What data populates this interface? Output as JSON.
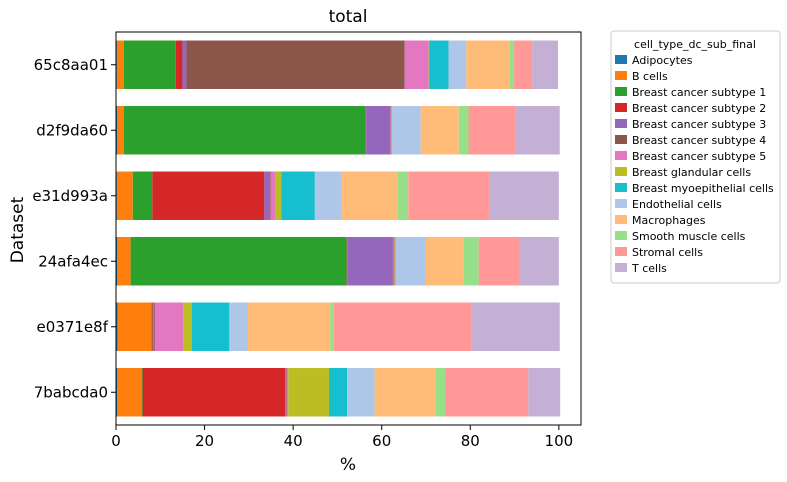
{
  "chart_data": {
    "type": "bar",
    "orientation": "horizontal",
    "stacked": true,
    "title": "total",
    "xlabel": "%",
    "ylabel": "Dataset",
    "xlim": [
      0,
      105
    ],
    "xticks": [
      0,
      20,
      40,
      60,
      80,
      100
    ],
    "grid": false,
    "legend_title": "cell_type_dc_sub_final",
    "legend_position": "outside-right",
    "categories": [
      "7babcda0",
      "e0371e8f",
      "24afa4ec",
      "e31d993a",
      "d2f9da60",
      "65c8aa01"
    ],
    "series": [
      {
        "name": "Adipocytes",
        "color": "#1f77b4",
        "values": [
          0.3,
          0.4,
          0.3,
          0.2,
          0.3,
          0.2
        ]
      },
      {
        "name": "B cells",
        "color": "#ff7f0e",
        "values": [
          5.5,
          7.6,
          3.0,
          3.6,
          1.5,
          1.6
        ]
      },
      {
        "name": "Breast cancer subtype 1",
        "color": "#2ca02c",
        "values": [
          0.2,
          0.2,
          48.8,
          4.4,
          54.6,
          11.7
        ]
      },
      {
        "name": "Breast cancer subtype 2",
        "color": "#d62728",
        "values": [
          32.2,
          0.2,
          0.1,
          25.3,
          0.1,
          1.5
        ]
      },
      {
        "name": "Breast cancer subtype 3",
        "color": "#9467bd",
        "values": [
          0.2,
          0.3,
          10.3,
          1.2,
          5.4,
          0.9
        ]
      },
      {
        "name": "Breast cancer subtype 4",
        "color": "#8c564b",
        "values": [
          0.1,
          0.1,
          0.2,
          0.2,
          0.1,
          49.3
        ]
      },
      {
        "name": "Breast cancer subtype 5",
        "color": "#e377c2",
        "values": [
          0.4,
          6.4,
          0.2,
          1.0,
          0.1,
          5.4
        ]
      },
      {
        "name": "Breast glandular cells",
        "color": "#bcbd22",
        "values": [
          9.2,
          1.9,
          0.1,
          1.4,
          0.1,
          0.1
        ]
      },
      {
        "name": "Breast myoepithelial cells",
        "color": "#17becf",
        "values": [
          4.1,
          8.5,
          0.1,
          7.6,
          0.1,
          4.4
        ]
      },
      {
        "name": "Endothelial cells",
        "color": "#aec7e8",
        "values": [
          6.2,
          4.2,
          6.9,
          6.0,
          6.5,
          4.0
        ]
      },
      {
        "name": "Macrophages",
        "color": "#ffbb78",
        "values": [
          13.7,
          18.6,
          8.5,
          12.6,
          8.6,
          9.7
        ]
      },
      {
        "name": "Smooth muscle cells",
        "color": "#98df8a",
        "values": [
          2.2,
          0.8,
          3.4,
          2.5,
          2.2,
          1.1
        ]
      },
      {
        "name": "Stromal cells",
        "color": "#ff9896",
        "values": [
          18.8,
          31.1,
          9.1,
          18.4,
          10.7,
          4.1
        ]
      },
      {
        "name": "T cells",
        "color": "#c5b0d5",
        "values": [
          7.2,
          19.9,
          9.0,
          15.6,
          9.9,
          5.8
        ]
      }
    ]
  }
}
